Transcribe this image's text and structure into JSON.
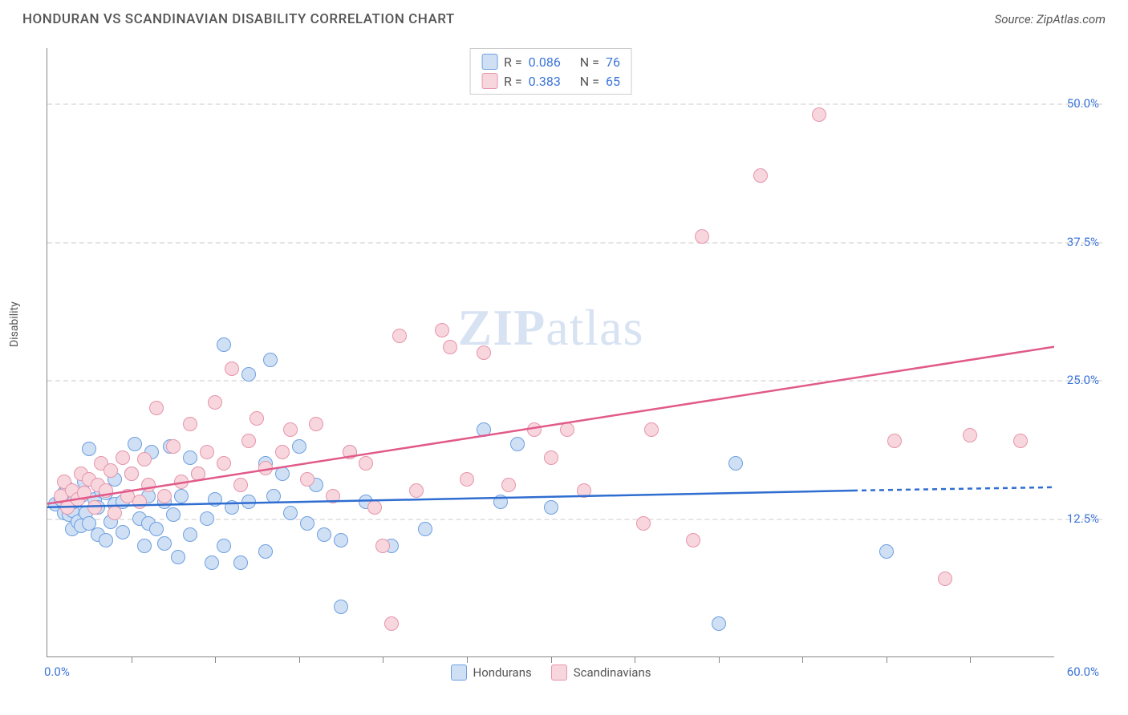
{
  "title": "HONDURAN VS SCANDINAVIAN DISABILITY CORRELATION CHART",
  "source_label": "Source: ZipAtlas.com",
  "watermark": {
    "z": "ZIP",
    "rest": "atlas"
  },
  "y_axis_label": "Disability",
  "chart": {
    "type": "scatter",
    "xlim": [
      0,
      60
    ],
    "ylim": [
      0,
      55
    ],
    "x_ticks_labeled": [
      {
        "v": 0,
        "label": "0.0%"
      },
      {
        "v": 60,
        "label": "60.0%"
      }
    ],
    "x_minor_ticks": [
      5,
      10,
      15,
      20,
      25,
      30,
      35,
      40,
      45,
      50,
      55
    ],
    "y_ticks": [
      {
        "v": 12.5,
        "label": "12.5%"
      },
      {
        "v": 25.0,
        "label": "25.0%"
      },
      {
        "v": 37.5,
        "label": "37.5%"
      },
      {
        "v": 50.0,
        "label": "50.0%"
      }
    ],
    "grid_color": "#e5e5e5",
    "background_color": "#ffffff",
    "marker_radius": 9,
    "marker_border_width": 1.5,
    "trend_line_width": 2.5,
    "series": [
      {
        "name": "Hondurans",
        "fill": "#cfe0f5",
        "stroke": "#6e9fe0",
        "line_color": "#2f6dd0",
        "R": "0.086",
        "N": "76",
        "trend": {
          "x1": 0,
          "y1": 13.5,
          "x2": 48,
          "y2": 15.0,
          "dash_from_x": 48,
          "dash_to_x": 60,
          "dash_y": 15.3
        },
        "points": [
          [
            0.5,
            13.8
          ],
          [
            0.8,
            14.2
          ],
          [
            1.0,
            13.0
          ],
          [
            1.0,
            14.8
          ],
          [
            1.2,
            15.2
          ],
          [
            1.3,
            12.8
          ],
          [
            1.5,
            11.5
          ],
          [
            1.5,
            13.2
          ],
          [
            1.6,
            14.0
          ],
          [
            1.8,
            12.2
          ],
          [
            2.0,
            14.5
          ],
          [
            2.0,
            11.8
          ],
          [
            2.2,
            15.8
          ],
          [
            2.3,
            13.0
          ],
          [
            2.5,
            12.0
          ],
          [
            2.5,
            18.8
          ],
          [
            2.8,
            14.2
          ],
          [
            3.0,
            11.0
          ],
          [
            3.0,
            13.5
          ],
          [
            3.2,
            15.0
          ],
          [
            3.5,
            10.5
          ],
          [
            3.5,
            14.8
          ],
          [
            3.8,
            12.2
          ],
          [
            4.0,
            13.8
          ],
          [
            4.0,
            16.0
          ],
          [
            4.5,
            11.2
          ],
          [
            4.5,
            14.0
          ],
          [
            5.0,
            16.5
          ],
          [
            5.2,
            19.2
          ],
          [
            5.5,
            12.5
          ],
          [
            5.8,
            10.0
          ],
          [
            6.0,
            12.0
          ],
          [
            6.0,
            14.5
          ],
          [
            6.2,
            18.5
          ],
          [
            6.5,
            11.5
          ],
          [
            7.0,
            10.2
          ],
          [
            7.0,
            14.0
          ],
          [
            7.3,
            19.0
          ],
          [
            7.5,
            12.8
          ],
          [
            7.8,
            9.0
          ],
          [
            8.0,
            14.5
          ],
          [
            8.5,
            11.0
          ],
          [
            8.5,
            18.0
          ],
          [
            9.0,
            16.5
          ],
          [
            9.5,
            12.5
          ],
          [
            9.8,
            8.5
          ],
          [
            10.5,
            28.2
          ],
          [
            10.0,
            14.2
          ],
          [
            10.5,
            10.0
          ],
          [
            11.0,
            13.5
          ],
          [
            11.5,
            8.5
          ],
          [
            12.0,
            25.5
          ],
          [
            12.0,
            14.0
          ],
          [
            13.0,
            17.5
          ],
          [
            13.3,
            26.8
          ],
          [
            13.0,
            9.5
          ],
          [
            13.5,
            14.5
          ],
          [
            14.0,
            16.5
          ],
          [
            14.5,
            13.0
          ],
          [
            15.0,
            19.0
          ],
          [
            15.5,
            12.0
          ],
          [
            16.0,
            15.5
          ],
          [
            16.5,
            11.0
          ],
          [
            17.5,
            10.5
          ],
          [
            17.5,
            4.5
          ],
          [
            18.0,
            18.5
          ],
          [
            19.0,
            14.0
          ],
          [
            20.5,
            10.0
          ],
          [
            22.5,
            11.5
          ],
          [
            26.0,
            20.5
          ],
          [
            27.0,
            14.0
          ],
          [
            28.0,
            19.2
          ],
          [
            30.0,
            13.5
          ],
          [
            40.0,
            3.0
          ],
          [
            41.0,
            17.5
          ],
          [
            50.0,
            9.5
          ]
        ]
      },
      {
        "name": "Scandinavians",
        "fill": "#f8d6de",
        "stroke": "#e695ab",
        "line_color": "#e15a8a",
        "R": "0.383",
        "N": "65",
        "trend": {
          "x1": 0,
          "y1": 13.8,
          "x2": 60,
          "y2": 28.0
        },
        "points": [
          [
            0.8,
            14.5
          ],
          [
            1.0,
            15.8
          ],
          [
            1.2,
            13.5
          ],
          [
            1.5,
            15.0
          ],
          [
            1.8,
            14.2
          ],
          [
            2.0,
            16.5
          ],
          [
            2.2,
            14.8
          ],
          [
            2.5,
            16.0
          ],
          [
            2.8,
            13.5
          ],
          [
            3.0,
            15.5
          ],
          [
            3.2,
            17.5
          ],
          [
            3.5,
            15.0
          ],
          [
            3.8,
            16.8
          ],
          [
            4.0,
            13.0
          ],
          [
            4.5,
            18.0
          ],
          [
            4.8,
            14.5
          ],
          [
            5.0,
            16.5
          ],
          [
            5.5,
            14.0
          ],
          [
            5.8,
            17.8
          ],
          [
            6.0,
            15.5
          ],
          [
            6.5,
            22.5
          ],
          [
            7.0,
            14.5
          ],
          [
            7.5,
            19.0
          ],
          [
            8.0,
            15.8
          ],
          [
            8.5,
            21.0
          ],
          [
            9.0,
            16.5
          ],
          [
            9.5,
            18.5
          ],
          [
            10.0,
            23.0
          ],
          [
            10.5,
            17.5
          ],
          [
            11.0,
            26.0
          ],
          [
            11.5,
            15.5
          ],
          [
            12.0,
            19.5
          ],
          [
            12.5,
            21.5
          ],
          [
            13.0,
            17.0
          ],
          [
            14.0,
            18.5
          ],
          [
            14.5,
            20.5
          ],
          [
            15.5,
            16.0
          ],
          [
            16.0,
            21.0
          ],
          [
            17.0,
            14.5
          ],
          [
            18.0,
            18.5
          ],
          [
            19.0,
            17.5
          ],
          [
            19.5,
            13.5
          ],
          [
            20.0,
            10.0
          ],
          [
            21.0,
            29.0
          ],
          [
            20.5,
            3.0
          ],
          [
            22.0,
            15.0
          ],
          [
            23.5,
            29.5
          ],
          [
            24.0,
            28.0
          ],
          [
            25.0,
            16.0
          ],
          [
            26.0,
            27.5
          ],
          [
            27.5,
            15.5
          ],
          [
            29.0,
            20.5
          ],
          [
            30.0,
            18.0
          ],
          [
            31.0,
            20.5
          ],
          [
            32.0,
            15.0
          ],
          [
            35.5,
            12.0
          ],
          [
            36.0,
            20.5
          ],
          [
            38.5,
            10.5
          ],
          [
            39.0,
            38.0
          ],
          [
            42.5,
            43.5
          ],
          [
            46.0,
            49.0
          ],
          [
            50.5,
            19.5
          ],
          [
            53.5,
            7.0
          ],
          [
            55.0,
            20.0
          ],
          [
            58.0,
            19.5
          ]
        ]
      }
    ]
  },
  "legend_labels": {
    "R": "R =",
    "N": "N ="
  }
}
